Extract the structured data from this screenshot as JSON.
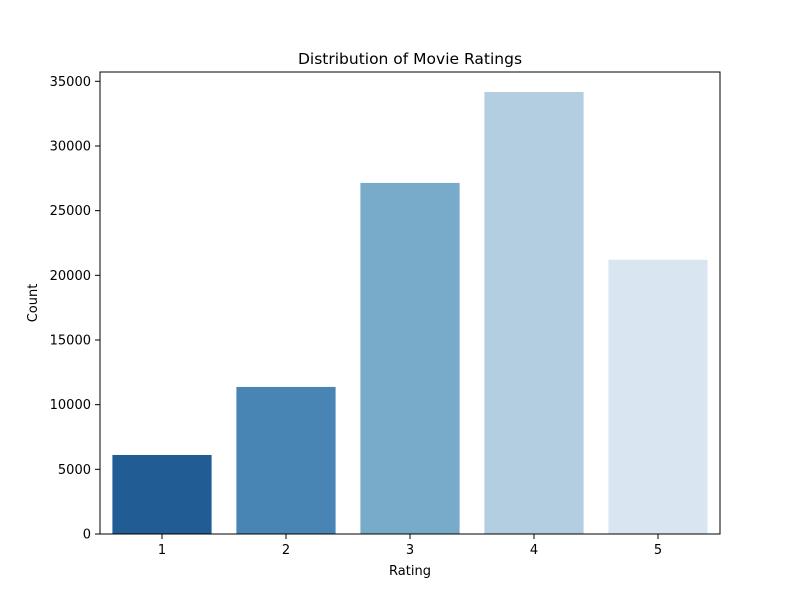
{
  "chart_data": {
    "type": "bar",
    "title": "Distribution of Movie Ratings",
    "xlabel": "Rating",
    "ylabel": "Count",
    "categories": [
      "1",
      "2",
      "3",
      "4",
      "5"
    ],
    "values": [
      6110,
      11370,
      27145,
      34174,
      21201
    ],
    "colors": [
      "#215d94",
      "#4884b4",
      "#78aaca",
      "#b3cee1",
      "#d9e6f2"
    ],
    "ylim": [
      0,
      35000
    ],
    "yticks": [
      0,
      5000,
      10000,
      15000,
      20000,
      25000,
      30000,
      35000
    ],
    "grid": false,
    "legend": "none"
  }
}
